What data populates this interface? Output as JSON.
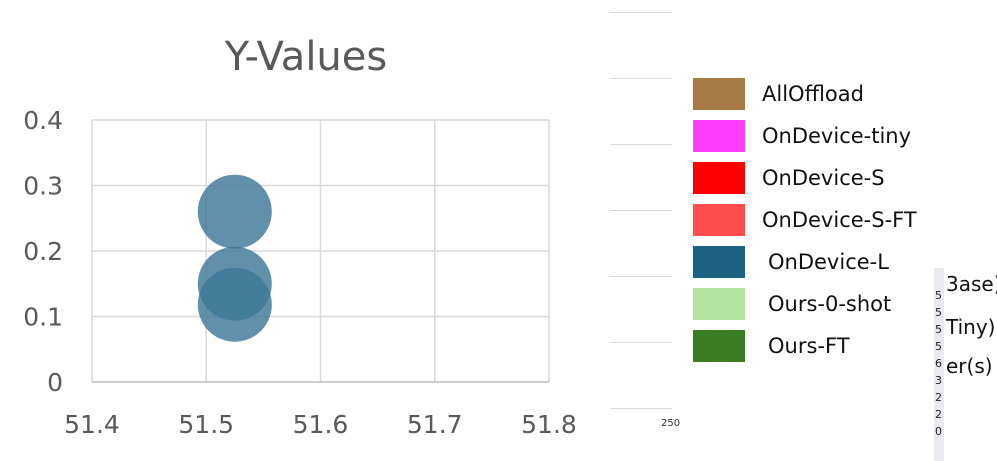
{
  "chart_data": {
    "type": "scatter",
    "title": "Y-Values",
    "xlim": [
      51.4,
      51.8
    ],
    "ylim": [
      0,
      0.4
    ],
    "x_ticks": [
      "51.4",
      "51.5",
      "51.6",
      "51.7",
      "51.8"
    ],
    "y_ticks": [
      "0",
      "0.1",
      "0.2",
      "0.3",
      "0.4"
    ],
    "grid": true,
    "points": [
      {
        "x": 51.525,
        "y": 0.26
      },
      {
        "x": 51.525,
        "y": 0.15
      },
      {
        "x": 51.525,
        "y": 0.118
      }
    ],
    "marker_color": "#3e7799"
  },
  "legend": {
    "items": [
      {
        "label": "AllOffload",
        "color": "#a67a44"
      },
      {
        "label": "OnDevice-tiny",
        "color": "#ff3dff"
      },
      {
        "label": "OnDevice-S",
        "color": "#ff0000"
      },
      {
        "label": "OnDevice-S-FT",
        "color": "#ff4d4d"
      },
      {
        "label": "OnDevice-L",
        "color": "#1b6282"
      },
      {
        "label": "Ours-0-shot",
        "color": "#b2e49d"
      },
      {
        "label": "Ours-FT",
        "color": "#3a7d23"
      }
    ]
  },
  "fragments": {
    "stray_tick": "250",
    "right_digits": [
      "5",
      "5",
      "5",
      "5",
      "6",
      "3",
      "2",
      "2",
      "0"
    ],
    "right_texts": [
      "3ase)",
      "Tiny)",
      "er(s)"
    ]
  }
}
